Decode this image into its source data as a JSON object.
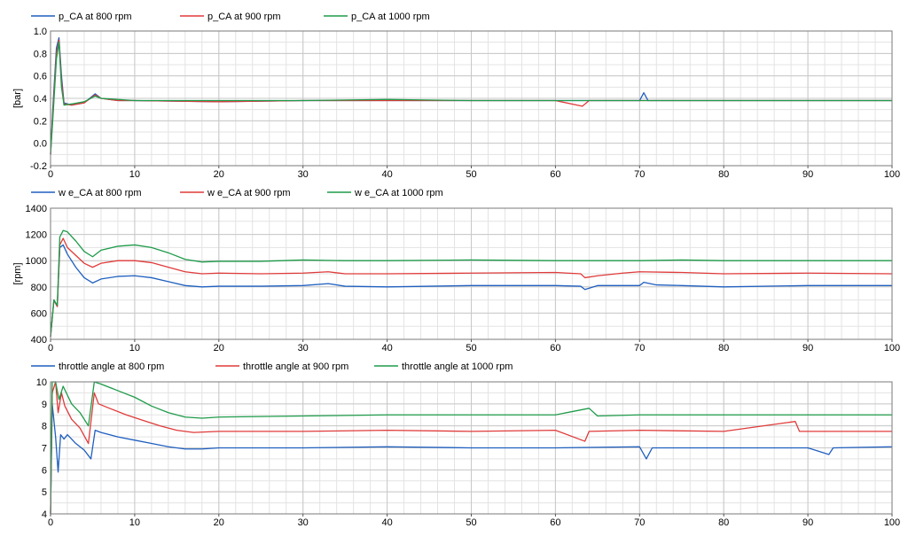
{
  "chart_data": [
    {
      "type": "line",
      "title": "",
      "xlabel": "",
      "ylabel": "[bar]",
      "xlim": [
        0,
        100
      ],
      "ylim": [
        -0.2,
        1.0
      ],
      "xticks": [
        "0",
        "10",
        "20",
        "30",
        "40",
        "50",
        "60",
        "70",
        "80",
        "90",
        "100"
      ],
      "yticks": [
        "-0.2",
        "0.0",
        "0.2",
        "0.4",
        "0.6",
        "0.8",
        "1.0"
      ],
      "grid": true,
      "legend_position": "top-left",
      "series": [
        {
          "name": "p_CA at 800 rpm",
          "color": "#1f5fbf",
          "points": [
            [
              0,
              -0.1
            ],
            [
              0.3,
              0.35
            ],
            [
              0.7,
              0.85
            ],
            [
              1.0,
              0.94
            ],
            [
              1.3,
              0.6
            ],
            [
              1.6,
              0.36
            ],
            [
              2.5,
              0.34
            ],
            [
              4,
              0.36
            ],
            [
              5.3,
              0.44
            ],
            [
              6,
              0.4
            ],
            [
              8,
              0.38
            ],
            [
              10,
              0.38
            ],
            [
              20,
              0.37
            ],
            [
              30,
              0.38
            ],
            [
              40,
              0.38
            ],
            [
              50,
              0.38
            ],
            [
              60,
              0.38
            ],
            [
              63,
              0.38
            ],
            [
              70,
              0.38
            ],
            [
              70.5,
              0.45
            ],
            [
              71,
              0.38
            ],
            [
              80,
              0.38
            ],
            [
              90,
              0.38
            ],
            [
              100,
              0.38
            ]
          ]
        },
        {
          "name": "p_CA at 900 rpm",
          "color": "#e03a3a",
          "points": [
            [
              0,
              -0.1
            ],
            [
              0.3,
              0.3
            ],
            [
              0.7,
              0.8
            ],
            [
              1.0,
              0.92
            ],
            [
              1.3,
              0.55
            ],
            [
              1.6,
              0.35
            ],
            [
              2.5,
              0.34
            ],
            [
              4,
              0.36
            ],
            [
              5.3,
              0.43
            ],
            [
              6,
              0.4
            ],
            [
              8,
              0.38
            ],
            [
              10,
              0.38
            ],
            [
              20,
              0.37
            ],
            [
              30,
              0.38
            ],
            [
              40,
              0.38
            ],
            [
              50,
              0.38
            ],
            [
              60,
              0.38
            ],
            [
              63.2,
              0.33
            ],
            [
              64,
              0.38
            ],
            [
              70,
              0.38
            ],
            [
              80,
              0.38
            ],
            [
              90,
              0.38
            ],
            [
              100,
              0.38
            ]
          ]
        },
        {
          "name": "p_CA at 1000 rpm",
          "color": "#1e9b4a",
          "points": [
            [
              0,
              -0.1
            ],
            [
              0.3,
              0.25
            ],
            [
              0.7,
              0.75
            ],
            [
              1.0,
              0.9
            ],
            [
              1.3,
              0.5
            ],
            [
              1.6,
              0.34
            ],
            [
              2.5,
              0.35
            ],
            [
              4,
              0.37
            ],
            [
              5.3,
              0.42
            ],
            [
              6,
              0.4
            ],
            [
              8,
              0.39
            ],
            [
              10,
              0.38
            ],
            [
              20,
              0.38
            ],
            [
              30,
              0.38
            ],
            [
              40,
              0.39
            ],
            [
              50,
              0.38
            ],
            [
              60,
              0.38
            ],
            [
              70,
              0.38
            ],
            [
              80,
              0.38
            ],
            [
              90,
              0.38
            ],
            [
              100,
              0.38
            ]
          ]
        }
      ]
    },
    {
      "type": "line",
      "title": "",
      "xlabel": "",
      "ylabel": "[rpm]",
      "xlim": [
        0,
        100
      ],
      "ylim": [
        400,
        1400
      ],
      "xticks": [
        "0",
        "10",
        "20",
        "30",
        "40",
        "50",
        "60",
        "70",
        "80",
        "90",
        "100"
      ],
      "yticks": [
        "400",
        "600",
        "800",
        "1000",
        "1200",
        "1400"
      ],
      "grid": true,
      "legend_position": "top-left",
      "series": [
        {
          "name": "w e_CA at 800 rpm",
          "color": "#1f5fbf",
          "points": [
            [
              0,
              420
            ],
            [
              0.4,
              700
            ],
            [
              0.8,
              650
            ],
            [
              1.1,
              1100
            ],
            [
              1.5,
              1120
            ],
            [
              2,
              1050
            ],
            [
              3,
              950
            ],
            [
              4,
              870
            ],
            [
              5,
              830
            ],
            [
              6,
              860
            ],
            [
              8,
              880
            ],
            [
              10,
              885
            ],
            [
              12,
              870
            ],
            [
              14,
              840
            ],
            [
              16,
              810
            ],
            [
              18,
              800
            ],
            [
              20,
              805
            ],
            [
              25,
              805
            ],
            [
              30,
              810
            ],
            [
              33,
              825
            ],
            [
              35,
              805
            ],
            [
              40,
              800
            ],
            [
              50,
              810
            ],
            [
              60,
              810
            ],
            [
              63,
              805
            ],
            [
              63.5,
              780
            ],
            [
              65,
              810
            ],
            [
              70,
              810
            ],
            [
              70.5,
              835
            ],
            [
              72,
              815
            ],
            [
              75,
              810
            ],
            [
              80,
              800
            ],
            [
              90,
              810
            ],
            [
              100,
              810
            ]
          ]
        },
        {
          "name": "w e_CA at 900 rpm",
          "color": "#e03a3a",
          "points": [
            [
              0,
              420
            ],
            [
              0.4,
              700
            ],
            [
              0.8,
              650
            ],
            [
              1.1,
              1120
            ],
            [
              1.5,
              1170
            ],
            [
              2,
              1100
            ],
            [
              3,
              1040
            ],
            [
              4,
              980
            ],
            [
              5,
              950
            ],
            [
              6,
              980
            ],
            [
              8,
              1000
            ],
            [
              10,
              1000
            ],
            [
              12,
              985
            ],
            [
              14,
              950
            ],
            [
              16,
              915
            ],
            [
              18,
              900
            ],
            [
              20,
              905
            ],
            [
              25,
              900
            ],
            [
              30,
              905
            ],
            [
              33,
              915
            ],
            [
              35,
              900
            ],
            [
              40,
              900
            ],
            [
              50,
              905
            ],
            [
              60,
              910
            ],
            [
              63,
              900
            ],
            [
              63.5,
              870
            ],
            [
              65,
              885
            ],
            [
              68,
              905
            ],
            [
              70,
              915
            ],
            [
              75,
              910
            ],
            [
              80,
              900
            ],
            [
              90,
              905
            ],
            [
              100,
              900
            ]
          ]
        },
        {
          "name": "w e_CA at 1000 rpm",
          "color": "#1e9b4a",
          "points": [
            [
              0,
              420
            ],
            [
              0.4,
              700
            ],
            [
              0.8,
              660
            ],
            [
              1.1,
              1180
            ],
            [
              1.5,
              1230
            ],
            [
              2,
              1220
            ],
            [
              3,
              1150
            ],
            [
              4,
              1070
            ],
            [
              5,
              1030
            ],
            [
              6,
              1080
            ],
            [
              8,
              1110
            ],
            [
              10,
              1120
            ],
            [
              12,
              1100
            ],
            [
              14,
              1060
            ],
            [
              16,
              1010
            ],
            [
              18,
              990
            ],
            [
              20,
              995
            ],
            [
              25,
              995
            ],
            [
              30,
              1005
            ],
            [
              35,
              1000
            ],
            [
              40,
              1000
            ],
            [
              50,
              1005
            ],
            [
              60,
              1000
            ],
            [
              70,
              1000
            ],
            [
              75,
              1005
            ],
            [
              80,
              1000
            ],
            [
              90,
              1000
            ],
            [
              100,
              1000
            ]
          ]
        }
      ]
    },
    {
      "type": "line",
      "title": "",
      "xlabel": "",
      "ylabel": "",
      "xlim": [
        0,
        100
      ],
      "ylim": [
        4,
        10
      ],
      "xticks": [
        "0",
        "10",
        "20",
        "30",
        "40",
        "50",
        "60",
        "70",
        "80",
        "90",
        "100"
      ],
      "yticks": [
        "4",
        "5",
        "6",
        "7",
        "8",
        "9",
        "10"
      ],
      "grid": true,
      "legend_position": "top-left",
      "series": [
        {
          "name": "throttle angle at 800 rpm",
          "color": "#1f5fbf",
          "points": [
            [
              0,
              4.0
            ],
            [
              0.2,
              9.0
            ],
            [
              0.6,
              7.5
            ],
            [
              0.9,
              5.9
            ],
            [
              1.2,
              7.6
            ],
            [
              1.6,
              7.4
            ],
            [
              2,
              7.6
            ],
            [
              3,
              7.2
            ],
            [
              4,
              6.9
            ],
            [
              4.8,
              6.5
            ],
            [
              5.3,
              7.8
            ],
            [
              6,
              7.7
            ],
            [
              8,
              7.5
            ],
            [
              10,
              7.35
            ],
            [
              12,
              7.2
            ],
            [
              14,
              7.05
            ],
            [
              16,
              6.95
            ],
            [
              18,
              6.95
            ],
            [
              20,
              7.0
            ],
            [
              30,
              7.0
            ],
            [
              40,
              7.05
            ],
            [
              50,
              7.0
            ],
            [
              60,
              7.0
            ],
            [
              70,
              7.05
            ],
            [
              70.8,
              6.5
            ],
            [
              71.5,
              7.0
            ],
            [
              80,
              7.0
            ],
            [
              90,
              7.0
            ],
            [
              92.5,
              6.7
            ],
            [
              93,
              7.0
            ],
            [
              100,
              7.05
            ]
          ]
        },
        {
          "name": "throttle angle at 900 rpm",
          "color": "#e03a3a",
          "points": [
            [
              0,
              4.0
            ],
            [
              0.2,
              9.5
            ],
            [
              0.6,
              10.0
            ],
            [
              0.9,
              8.6
            ],
            [
              1.3,
              9.5
            ],
            [
              1.7,
              8.9
            ],
            [
              2.5,
              8.3
            ],
            [
              3.5,
              7.9
            ],
            [
              4.5,
              7.2
            ],
            [
              5.2,
              9.5
            ],
            [
              5.7,
              9.0
            ],
            [
              7,
              8.8
            ],
            [
              9,
              8.5
            ],
            [
              11,
              8.25
            ],
            [
              13,
              8.0
            ],
            [
              15,
              7.8
            ],
            [
              17,
              7.7
            ],
            [
              20,
              7.75
            ],
            [
              30,
              7.75
            ],
            [
              40,
              7.8
            ],
            [
              50,
              7.75
            ],
            [
              60,
              7.8
            ],
            [
              63.5,
              7.3
            ],
            [
              64,
              7.75
            ],
            [
              70,
              7.8
            ],
            [
              80,
              7.75
            ],
            [
              88.5,
              8.2
            ],
            [
              89,
              7.75
            ],
            [
              90,
              7.75
            ],
            [
              100,
              7.75
            ]
          ]
        },
        {
          "name": "throttle angle at 1000 rpm",
          "color": "#1e9b4a",
          "points": [
            [
              0,
              4.0
            ],
            [
              0.2,
              10.0
            ],
            [
              0.6,
              10.0
            ],
            [
              1.0,
              9.2
            ],
            [
              1.5,
              9.8
            ],
            [
              2.5,
              9.0
            ],
            [
              3.5,
              8.6
            ],
            [
              4.5,
              8.0
            ],
            [
              5.2,
              10.0
            ],
            [
              6,
              9.9
            ],
            [
              8,
              9.6
            ],
            [
              10,
              9.3
            ],
            [
              12,
              8.9
            ],
            [
              14,
              8.6
            ],
            [
              16,
              8.4
            ],
            [
              18,
              8.35
            ],
            [
              20,
              8.4
            ],
            [
              30,
              8.45
            ],
            [
              40,
              8.5
            ],
            [
              50,
              8.5
            ],
            [
              60,
              8.5
            ],
            [
              64,
              8.8
            ],
            [
              65,
              8.45
            ],
            [
              70,
              8.5
            ],
            [
              80,
              8.5
            ],
            [
              90,
              8.5
            ],
            [
              100,
              8.5
            ]
          ]
        }
      ]
    }
  ]
}
